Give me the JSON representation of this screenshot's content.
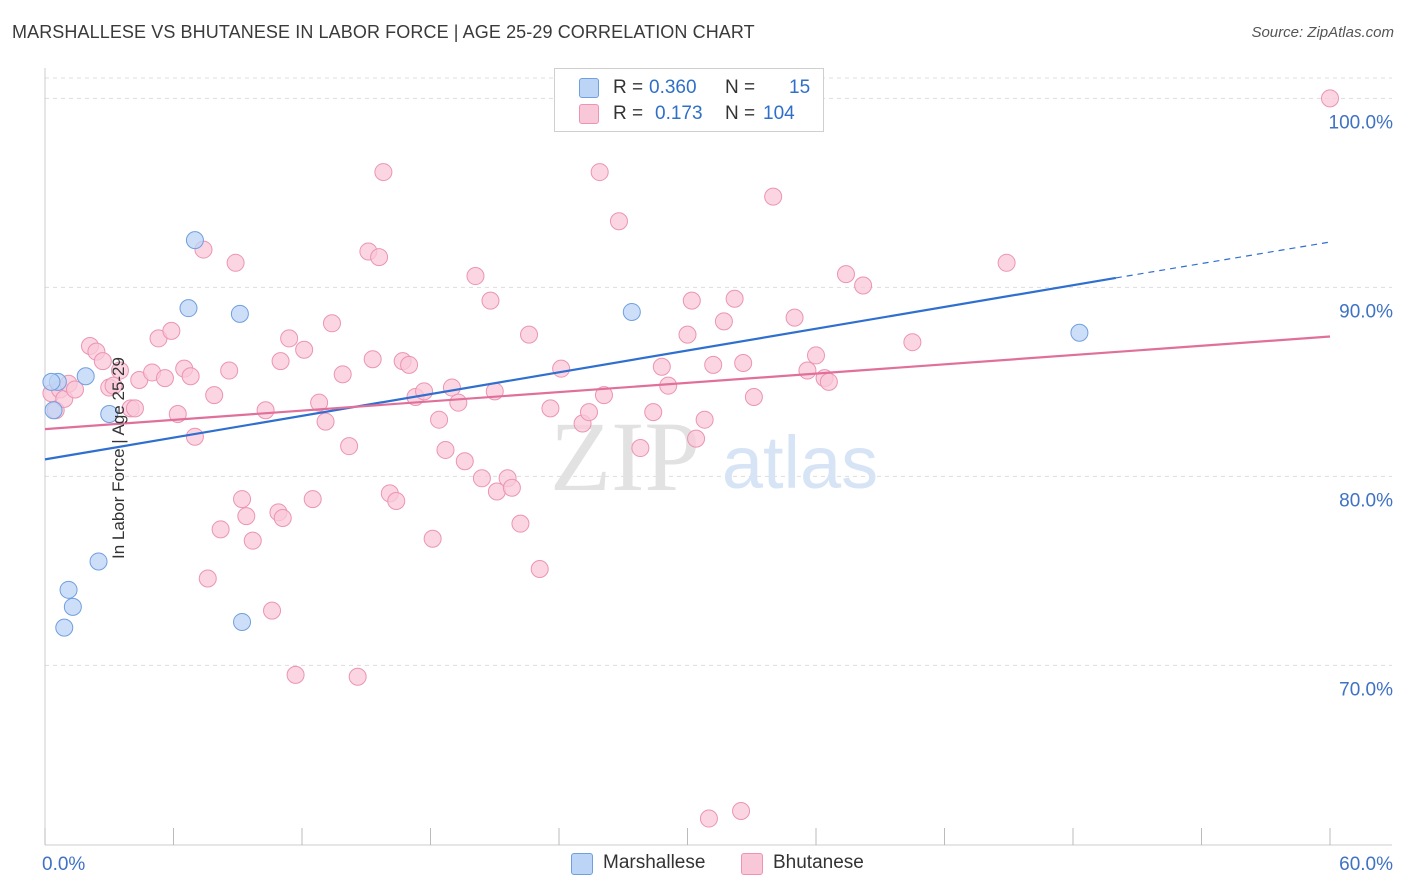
{
  "title": "MARSHALLESE VS BHUTANESE IN LABOR FORCE | AGE 25-29 CORRELATION CHART",
  "source": "Source: ZipAtlas.com",
  "watermark": {
    "zip": "ZIP",
    "atlas": "atlas"
  },
  "legend_top": {
    "rows": [
      {
        "r_label": "R = ",
        "r_value": "0.360",
        "n_label": "N = ",
        "n_value": "15"
      },
      {
        "r_label": "R = ",
        "r_value": "0.173",
        "n_label": "N = ",
        "n_value": "104"
      }
    ]
  },
  "colors": {
    "marshallese_fill": "#bcd4f6",
    "marshallese_stroke": "#6f9fe0",
    "marshallese_line": "#2f6fd0",
    "bhutanese_fill": "#f9c8d8",
    "bhutanese_stroke": "#ec94b2",
    "bhutanese_line": "#e0709a",
    "axis_text": "#3f72c4",
    "grid": "#dddddd"
  },
  "chart_data": {
    "type": "scatter",
    "title": "MARSHALLESE VS BHUTANESE IN LABOR FORCE | AGE 25-29 CORRELATION CHART",
    "xlabel": "",
    "ylabel": "In Labor Force | Age 25-29",
    "xlim": [
      0,
      60
    ],
    "ylim": [
      60.5,
      101.5
    ],
    "x_tick_labels": [
      "0.0%",
      "60.0%"
    ],
    "y_ticks": [
      70,
      80,
      90,
      100
    ],
    "y_tick_labels": [
      "70.0%",
      "80.0%",
      "90.0%",
      "100.0%"
    ],
    "legend_position": "bottom-center",
    "series": [
      {
        "name": "Marshallese",
        "r": 0.36,
        "n": 15,
        "trend": {
          "x0": 0,
          "y0": 80.9,
          "x1": 50,
          "y1": 90.5,
          "dashed_to_x": 60,
          "dashed_to_y": 92.4
        },
        "points": [
          [
            0.4,
            83.5
          ],
          [
            0.6,
            85.0
          ],
          [
            0.9,
            72.0
          ],
          [
            1.1,
            74.0
          ],
          [
            1.3,
            73.1
          ],
          [
            1.9,
            85.3
          ],
          [
            2.5,
            75.5
          ],
          [
            3.0,
            83.3
          ],
          [
            7.0,
            92.5
          ],
          [
            6.7,
            88.9
          ],
          [
            9.1,
            88.6
          ],
          [
            9.2,
            72.3
          ],
          [
            27.4,
            88.7
          ],
          [
            48.3,
            87.6
          ],
          [
            0.3,
            85.0
          ]
        ]
      },
      {
        "name": "Bhutanese",
        "r": 0.173,
        "n": 104,
        "trend": {
          "x0": 0,
          "y0": 82.5,
          "x1": 60,
          "y1": 87.4
        },
        "points": [
          [
            0.3,
            84.4
          ],
          [
            0.5,
            83.5
          ],
          [
            0.7,
            84.6
          ],
          [
            0.9,
            84.1
          ],
          [
            1.1,
            84.9
          ],
          [
            1.4,
            84.6
          ],
          [
            2.1,
            86.9
          ],
          [
            2.4,
            86.6
          ],
          [
            2.7,
            86.1
          ],
          [
            3.0,
            84.7
          ],
          [
            3.5,
            85.6
          ],
          [
            4.0,
            83.6
          ],
          [
            4.4,
            85.1
          ],
          [
            5.0,
            85.5
          ],
          [
            5.3,
            87.3
          ],
          [
            5.6,
            85.2
          ],
          [
            5.9,
            87.7
          ],
          [
            6.2,
            83.3
          ],
          [
            6.5,
            85.7
          ],
          [
            6.8,
            85.3
          ],
          [
            7.0,
            82.1
          ],
          [
            7.4,
            92.0
          ],
          [
            7.6,
            74.6
          ],
          [
            7.9,
            84.3
          ],
          [
            8.2,
            77.2
          ],
          [
            8.6,
            85.6
          ],
          [
            8.9,
            91.3
          ],
          [
            9.2,
            78.8
          ],
          [
            9.4,
            77.9
          ],
          [
            9.7,
            76.6
          ],
          [
            10.3,
            83.5
          ],
          [
            10.6,
            72.9
          ],
          [
            10.9,
            78.1
          ],
          [
            11.1,
            77.8
          ],
          [
            11.4,
            87.3
          ],
          [
            11.7,
            69.5
          ],
          [
            12.1,
            86.7
          ],
          [
            12.5,
            78.8
          ],
          [
            12.8,
            83.9
          ],
          [
            13.1,
            82.9
          ],
          [
            13.4,
            88.1
          ],
          [
            13.9,
            85.4
          ],
          [
            14.2,
            81.6
          ],
          [
            14.6,
            69.4
          ],
          [
            15.1,
            91.9
          ],
          [
            15.3,
            86.2
          ],
          [
            15.6,
            91.6
          ],
          [
            15.8,
            96.1
          ],
          [
            16.1,
            79.1
          ],
          [
            16.4,
            78.7
          ],
          [
            16.7,
            86.1
          ],
          [
            17.0,
            85.9
          ],
          [
            17.3,
            84.2
          ],
          [
            17.7,
            84.5
          ],
          [
            18.1,
            76.7
          ],
          [
            18.4,
            83.0
          ],
          [
            18.7,
            81.4
          ],
          [
            19.0,
            84.7
          ],
          [
            19.3,
            83.9
          ],
          [
            19.6,
            80.8
          ],
          [
            20.1,
            90.6
          ],
          [
            20.4,
            79.9
          ],
          [
            20.8,
            89.3
          ],
          [
            21.1,
            79.2
          ],
          [
            21.6,
            79.9
          ],
          [
            21.8,
            79.4
          ],
          [
            22.2,
            77.5
          ],
          [
            22.6,
            87.5
          ],
          [
            23.1,
            75.1
          ],
          [
            23.6,
            83.6
          ],
          [
            24.1,
            85.7
          ],
          [
            25.1,
            82.8
          ],
          [
            25.4,
            83.4
          ],
          [
            25.9,
            96.1
          ],
          [
            26.1,
            84.3
          ],
          [
            26.8,
            93.5
          ],
          [
            27.8,
            81.5
          ],
          [
            28.4,
            83.4
          ],
          [
            28.8,
            85.8
          ],
          [
            29.1,
            84.8
          ],
          [
            30.2,
            89.3
          ],
          [
            30.4,
            82.0
          ],
          [
            30.8,
            83.0
          ],
          [
            31.2,
            85.9
          ],
          [
            31.7,
            88.2
          ],
          [
            32.2,
            89.4
          ],
          [
            32.6,
            86.0
          ],
          [
            33.1,
            84.2
          ],
          [
            34.0,
            94.8
          ],
          [
            35.0,
            88.4
          ],
          [
            35.6,
            85.6
          ],
          [
            36.0,
            86.4
          ],
          [
            36.4,
            85.2
          ],
          [
            36.6,
            85.0
          ],
          [
            37.4,
            90.7
          ],
          [
            38.2,
            90.1
          ],
          [
            40.5,
            87.1
          ],
          [
            44.9,
            91.3
          ],
          [
            30.0,
            87.5
          ],
          [
            60.0,
            100.0
          ],
          [
            31.0,
            61.9
          ],
          [
            32.5,
            62.3
          ],
          [
            11.0,
            86.1
          ],
          [
            4.2,
            83.6
          ],
          [
            3.2,
            84.8
          ],
          [
            21.0,
            84.5
          ]
        ]
      }
    ]
  },
  "legend_bottom": {
    "items": [
      "Marshallese",
      "Bhutanese"
    ]
  }
}
